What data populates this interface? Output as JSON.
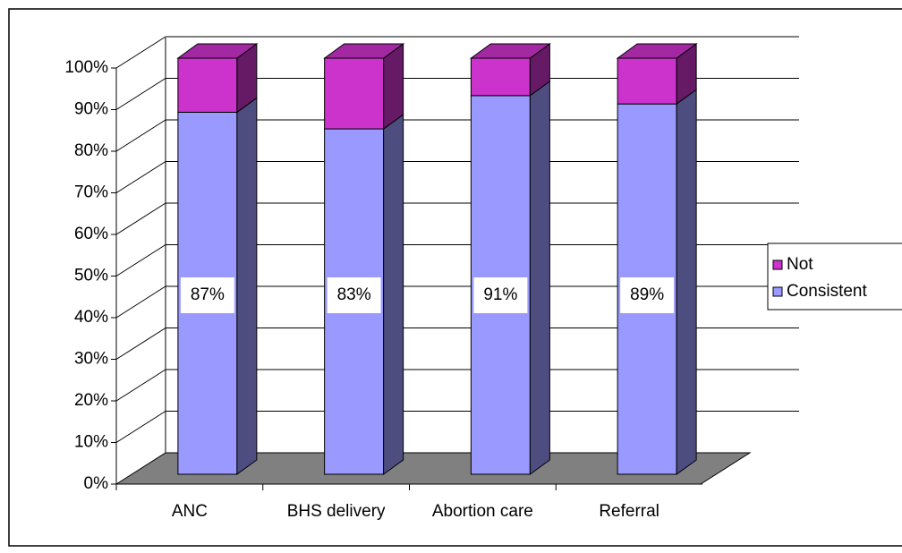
{
  "chart_data": {
    "type": "bar3d_stacked",
    "categories": [
      "ANC",
      "BHS delivery",
      "Abortion care",
      "Referral"
    ],
    "series": [
      {
        "name": "Consistent",
        "color": "#9999ff",
        "values": [
          87,
          83,
          91,
          89
        ],
        "value_labels": [
          "87%",
          "83%",
          "91%",
          "89%"
        ]
      },
      {
        "name": "Not",
        "color": "#cc33cc",
        "values": [
          13,
          17,
          9,
          11
        ]
      }
    ],
    "ylim": [
      0,
      100
    ],
    "yticks": [
      {
        "value": 0,
        "label": "0%"
      },
      {
        "value": 10,
        "label": "10%"
      },
      {
        "value": 20,
        "label": "20%"
      },
      {
        "value": 30,
        "label": "30%"
      },
      {
        "value": 40,
        "label": "40%"
      },
      {
        "value": 50,
        "label": "50%"
      },
      {
        "value": 60,
        "label": "60%"
      },
      {
        "value": 70,
        "label": "70%"
      },
      {
        "value": 80,
        "label": "80%"
      },
      {
        "value": 90,
        "label": "90%"
      },
      {
        "value": 100,
        "label": "100%"
      }
    ],
    "grid": true,
    "legend": "right"
  }
}
